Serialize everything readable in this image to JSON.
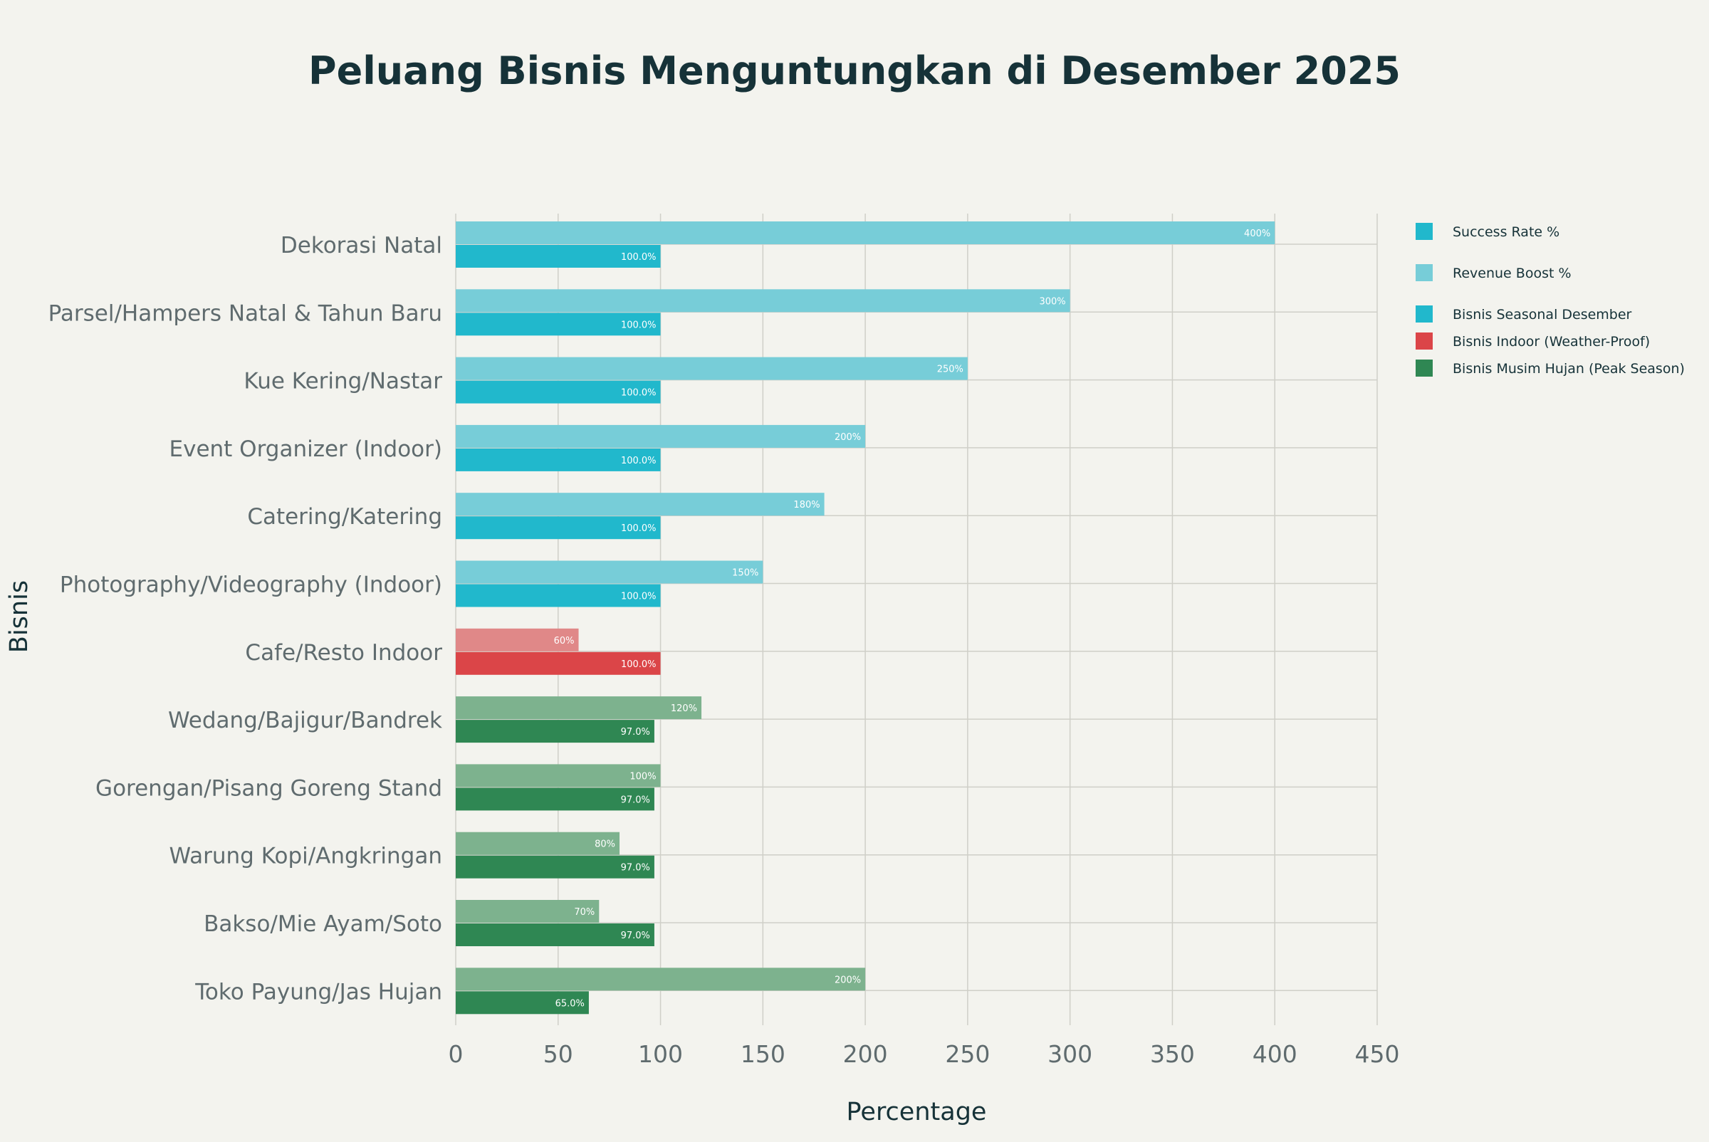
{
  "colors": {
    "background": "#f3f3ee",
    "title": "#163238",
    "axis_text": "#5f6b6e",
    "grid": "#cfcfc8",
    "seasonal": "#21b8cc",
    "seasonal_light": "#77cdd8",
    "indoor": "#db4548",
    "indoor_light": "#e08888",
    "rainy": "#2f8753",
    "rainy_light": "#7db28e"
  },
  "chart_data": {
    "type": "bar",
    "orientation": "horizontal",
    "title": "Peluang Bisnis Menguntungkan di Desember 2025",
    "xlabel": "Percentage",
    "ylabel": "Bisnis",
    "xlim": [
      0,
      450
    ],
    "xticks": [
      0,
      50,
      100,
      150,
      200,
      250,
      300,
      350,
      400,
      450
    ],
    "grid": true,
    "legend_position": "top-right",
    "legend": [
      {
        "label": "Success Rate %",
        "color": "#21b8cc"
      },
      {
        "label": "Revenue Boost %",
        "color": "#77cdd8"
      },
      {
        "label": "Bisnis Seasonal Desember",
        "color": "#21b8cc"
      },
      {
        "label": "Bisnis Indoor (Weather-Proof)",
        "color": "#db4548"
      },
      {
        "label": "Bisnis Musim Hujan (Peak Season)",
        "color": "#2f8753"
      }
    ],
    "categories": [
      "Dekorasi Natal",
      "Parsel/Hampers Natal & Tahun Baru",
      "Kue Kering/Nastar",
      "Event Organizer (Indoor)",
      "Catering/Katering",
      "Photography/Videography (Indoor)",
      "Cafe/Resto Indoor",
      "Wedang/Bajigur/Bandrek",
      "Gorengan/Pisang Goreng Stand",
      "Warung Kopi/Angkringan",
      "Bakso/Mie Ayam/Soto",
      "Toko Payung/Jas Hujan"
    ],
    "groups": [
      "seasonal",
      "seasonal",
      "seasonal",
      "seasonal",
      "seasonal",
      "seasonal",
      "indoor",
      "rainy",
      "rainy",
      "rainy",
      "rainy",
      "rainy"
    ],
    "series": [
      {
        "name": "Revenue Boost %",
        "values": [
          400,
          300,
          250,
          200,
          180,
          150,
          60,
          120,
          100,
          80,
          70,
          200
        ],
        "labels": [
          "400%",
          "300%",
          "250%",
          "200%",
          "180%",
          "150%",
          "60%",
          "120%",
          "100%",
          "80%",
          "70%",
          "200%"
        ]
      },
      {
        "name": "Success Rate %",
        "values": [
          100,
          100,
          100,
          100,
          100,
          100,
          100,
          97,
          97,
          97,
          97,
          65
        ],
        "labels": [
          "100.0%",
          "100.0%",
          "100.0%",
          "100.0%",
          "100.0%",
          "100.0%",
          "100.0%",
          "97.0%",
          "97.0%",
          "97.0%",
          "97.0%",
          "65.0%"
        ]
      }
    ]
  }
}
